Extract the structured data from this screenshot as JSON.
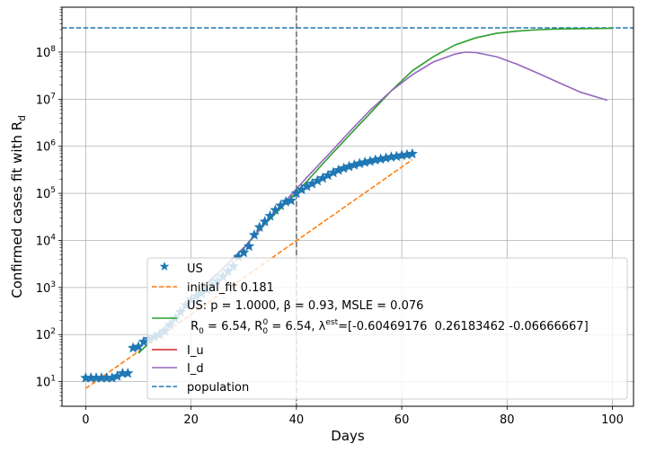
{
  "chart_data": {
    "type": "line",
    "xlabel": "Days",
    "ylabel_main": "Confirmed cases fit with R",
    "ylabel_sub": "d",
    "xlim": [
      -4.5,
      104
    ],
    "ylim": [
      3,
      900000000
    ],
    "yscale": "log",
    "grid": true,
    "xticks": [
      0,
      20,
      40,
      60,
      80,
      100
    ],
    "yticks": [
      {
        "exp": "1",
        "value": 10
      },
      {
        "exp": "2",
        "value": 100
      },
      {
        "exp": "3",
        "value": 1000
      },
      {
        "exp": "4",
        "value": 10000
      },
      {
        "exp": "5",
        "value": 100000
      },
      {
        "exp": "6",
        "value": 1000000
      },
      {
        "exp": "7",
        "value": 10000000
      },
      {
        "exp": "8",
        "value": 100000000
      }
    ],
    "vline_x": 40,
    "legend": {
      "location": "lower-right",
      "entries": [
        {
          "key": "us",
          "label": "US"
        },
        {
          "key": "initial_fit",
          "label": "initial_fit 0.181"
        },
        {
          "key": "model",
          "label": "US: p = 1.0000,  β =  0.93, MSLE = 0.076"
        },
        {
          "key": "iu",
          "label": "I_u"
        },
        {
          "key": "id",
          "label": "I_d"
        },
        {
          "key": "population",
          "label": "population"
        }
      ],
      "model_line2": {
        "r0_a": " R",
        "r0_a_sub": "0",
        "r0_a_val": " = 6.54, R",
        "r0_b_sub": "0",
        "r0_b_sup": "0",
        "r0_b_val": " = 6.54, λ",
        "lambda_sup": "est",
        "lambda_val": "=[-0.60469176  0.26183462 -0.06666667]"
      }
    },
    "colors": {
      "us": "#1f77b4",
      "initial_fit": "#ff7f0e",
      "model": "#2ca02c",
      "iu": "#d62728",
      "id": "#9467bd",
      "population": "#1f77b4",
      "vline": "#808080",
      "grid": "#b0b0b0"
    },
    "series": [
      {
        "key": "us",
        "name": "US",
        "style": "stars",
        "x": [
          0,
          1,
          2,
          3,
          4,
          5,
          6,
          7,
          8,
          9,
          10,
          11,
          12,
          13,
          14,
          15,
          16,
          17,
          18,
          19,
          20,
          21,
          22,
          23,
          24,
          25,
          26,
          27,
          28,
          29,
          30,
          31,
          32,
          33,
          34,
          35,
          36,
          37,
          38,
          39,
          40,
          41,
          42,
          43,
          44,
          45,
          46,
          47,
          48,
          49,
          50,
          51,
          52,
          53,
          54,
          55,
          56,
          57,
          58,
          59,
          60,
          61,
          62
        ],
        "y": [
          12,
          12,
          12,
          12,
          12,
          12,
          13,
          15,
          15,
          52,
          55,
          70,
          80,
          90,
          100,
          120,
          160,
          220,
          300,
          420,
          550,
          650,
          750,
          900,
          1100,
          1350,
          1700,
          2200,
          2800,
          4500,
          5500,
          7500,
          13000,
          19000,
          25000,
          33000,
          44000,
          55000,
          66000,
          70000,
          100000,
          120000,
          140000,
          160000,
          185000,
          210000,
          240000,
          275000,
          310000,
          340000,
          370000,
          400000,
          430000,
          455000,
          480000,
          510000,
          535000,
          560000,
          590000,
          610000,
          640000,
          660000,
          690000
        ]
      },
      {
        "key": "initial_fit",
        "name": "initial_fit 0.181",
        "style": "dashed",
        "x": [
          0,
          62
        ],
        "y": [
          7.2,
          520000
        ]
      },
      {
        "key": "model",
        "name": "US: p = 1.0000,  β =  0.93, MSLE = 0.076",
        "style": "solid",
        "x": [
          10,
          14,
          18,
          22,
          26,
          30,
          34,
          38,
          42,
          46,
          50,
          54,
          58,
          62,
          66,
          70,
          74,
          78,
          82,
          86,
          90,
          94,
          100
        ],
        "y": [
          40,
          110,
          300,
          900,
          2500,
          6800,
          22000,
          62000,
          180000,
          560000,
          1700000,
          5000000,
          15000000,
          40000000,
          80000000,
          140000000,
          200000000,
          250000000,
          280000000,
          300000000,
          310000000,
          315000000,
          320000000
        ]
      },
      {
        "key": "iu",
        "name": "I_u",
        "style": "solid",
        "x": [],
        "y": []
      },
      {
        "key": "id",
        "name": "I_d",
        "style": "solid",
        "x": [
          22,
          26,
          30,
          34,
          38,
          42,
          46,
          50,
          54,
          58,
          62,
          66,
          70,
          72,
          74,
          78,
          82,
          86,
          90,
          94,
          99
        ],
        "y": [
          1000,
          2500,
          7000,
          23000,
          70000,
          220000,
          650000,
          2000000,
          5800000,
          15000000,
          33000000,
          62000000,
          90000000,
          100000000,
          98000000,
          80000000,
          55000000,
          35000000,
          22000000,
          14000000,
          9500000
        ]
      },
      {
        "key": "population",
        "name": "population",
        "style": "dashed",
        "x": [
          -4.5,
          104
        ],
        "y": [
          328000000,
          328000000
        ]
      }
    ]
  }
}
